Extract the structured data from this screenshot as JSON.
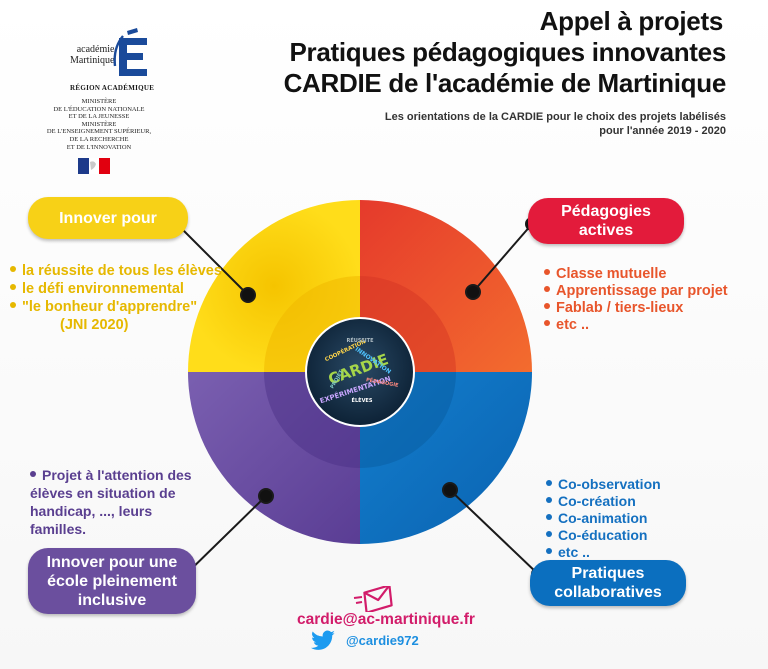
{
  "header": {
    "title_line1": "Appel à projets",
    "title_line2": "Pratiques pédagogiques innovantes",
    "title_line3": "CARDIE de l'académie de Martinique",
    "subtitle_line1": "Les orientations de la CARDIE pour le choix des projets labélisés",
    "subtitle_line2": "pour l'année 2019 - 2020"
  },
  "logo": {
    "line1": "académie",
    "line2": "Martinique",
    "region": "RÉGION ACADÉMIQUE",
    "ministere_lines": [
      "MINISTÈRE",
      "DE L'ÉDUCATION NATIONALE",
      "ET DE LA JEUNESSE",
      "MINISTÈRE",
      "DE L'ENSEIGNEMENT SUPÉRIEUR,",
      "DE LA RECHERCHE",
      "ET DE L'INNOVATION"
    ],
    "icon": "academie-e-logo",
    "flag_icon": "marianne-flag-icon"
  },
  "sections": {
    "innover": {
      "label": "Innover pour",
      "color": "#f7d117",
      "items": [
        "la réussite de tous les élèves",
        "le défi environnemental",
        "\"le bonheur d'apprendre\""
      ],
      "note": "(JNI 2020)"
    },
    "pedagogies": {
      "label_line1": "Pédagogies",
      "label_line2": "actives",
      "color": "#e31b3b",
      "items": [
        "Classe mutuelle",
        "Apprentissage par projet",
        "Fablab / tiers-lieux",
        "etc .."
      ]
    },
    "inclusive": {
      "label_line1": "Innover pour une",
      "label_line2": "école pleinement",
      "label_line3": "inclusive",
      "color": "#6b4f9e",
      "text": "Projet à l'attention des élèves en situation de handicap, ...,  leurs familles."
    },
    "collaboratives": {
      "label_line1": "Pratiques",
      "label_line2": "collaboratives",
      "color": "#0b6fbf",
      "items": [
        "Co-observation",
        "Co-création",
        "Co-animation",
        "Co-éducation",
        "etc .."
      ]
    }
  },
  "center": {
    "icon": "cardie-word-cloud",
    "words": [
      "CARDIE",
      "EXPÉRIMENTATION",
      "INNOVATION",
      "COOPÉRATION",
      "PÉDAGOGIE",
      "PROJET",
      "ÉLÈVES",
      "RÉUSSITE"
    ]
  },
  "contact": {
    "email": "cardie@ac-martinique.fr",
    "twitter": "@cardie972",
    "email_icon": "envelope-icon",
    "twitter_icon": "twitter-bird-icon"
  }
}
